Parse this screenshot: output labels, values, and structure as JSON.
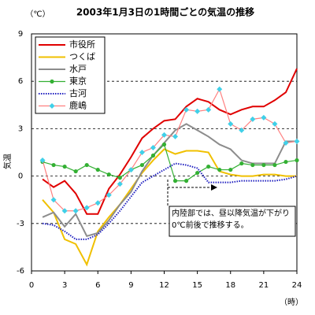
{
  "chart_data": {
    "type": "line",
    "title": "2003年1月3日の1時間ごとの気温の推移",
    "y_unit": "（℃）",
    "y_label": "気温",
    "x_unit": "（時）",
    "annotation": "内陸部では、昼以降気温が下がり0℃前後で推移する。",
    "x": [
      1,
      2,
      3,
      4,
      5,
      6,
      7,
      8,
      9,
      10,
      11,
      12,
      13,
      14,
      15,
      16,
      17,
      18,
      19,
      20,
      21,
      22,
      23,
      24
    ],
    "xlim": [
      0,
      24
    ],
    "xticks": [
      0,
      3,
      6,
      9,
      12,
      15,
      18,
      21,
      24
    ],
    "ylim": [
      -6,
      9
    ],
    "yticks": [
      -6,
      -3,
      0,
      3,
      6,
      9
    ],
    "grid": true,
    "series": [
      {
        "name": "市役所",
        "color": "#e00000",
        "marker": "none",
        "values": [
          -0.2,
          -0.7,
          -0.3,
          -1.1,
          -2.4,
          -2.4,
          -0.8,
          0.1,
          1.2,
          2.4,
          3.0,
          3.5,
          3.6,
          4.4,
          4.9,
          4.7,
          4.2,
          3.9,
          4.2,
          4.4,
          4.4,
          4.8,
          5.3,
          6.8
        ]
      },
      {
        "name": "つくば",
        "color": "#f0c000",
        "marker": "none",
        "values": [
          -1.5,
          -2.3,
          -4.0,
          -4.3,
          -5.6,
          -3.5,
          -2.6,
          -1.8,
          -0.8,
          0.2,
          1.0,
          1.7,
          1.4,
          1.6,
          1.6,
          1.5,
          0.3,
          0.1,
          0.0,
          0.0,
          0.1,
          0.1,
          0.0,
          0.0
        ]
      },
      {
        "name": "水戸",
        "color": "#8c8c8c",
        "marker": "none",
        "values": [
          -2.6,
          -2.3,
          -3.2,
          -2.4,
          -3.8,
          -3.6,
          -2.8,
          -1.8,
          -1.0,
          0.3,
          1.3,
          2.1,
          2.9,
          3.3,
          2.9,
          2.5,
          2.0,
          1.7,
          1.0,
          0.8,
          0.8,
          0.8,
          2.2,
          2.2
        ]
      },
      {
        "name": "東京",
        "color": "#33b033",
        "marker": "circle",
        "values": [
          0.9,
          0.7,
          0.6,
          0.3,
          0.7,
          0.4,
          0.1,
          -0.1,
          0.4,
          0.7,
          1.3,
          2.0,
          -0.3,
          -0.3,
          0.2,
          0.6,
          0.4,
          0.4,
          0.8,
          0.7,
          0.7,
          0.7,
          0.9,
          1.0
        ]
      },
      {
        "name": "古河",
        "color": "#2020c0",
        "marker": "dotted",
        "values": [
          -3.0,
          -3.1,
          -3.5,
          -4.0,
          -4.0,
          -3.7,
          -3.0,
          -2.2,
          -1.3,
          -0.4,
          0.0,
          0.4,
          0.8,
          0.7,
          0.5,
          -0.4,
          -0.4,
          -0.4,
          -0.3,
          -0.3,
          -0.3,
          -0.3,
          -0.2,
          0.0
        ]
      },
      {
        "name": "鹿嶋",
        "color": "#ff8080",
        "marker_color": "#40d0e8",
        "marker": "diamond",
        "values": [
          1.0,
          -1.5,
          -2.2,
          -2.2,
          -2.0,
          -1.7,
          -1.2,
          -0.5,
          0.4,
          1.5,
          1.8,
          2.6,
          2.5,
          4.2,
          4.1,
          4.2,
          5.5,
          3.3,
          2.9,
          3.6,
          3.7,
          3.3,
          2.1,
          2.2
        ]
      }
    ]
  }
}
